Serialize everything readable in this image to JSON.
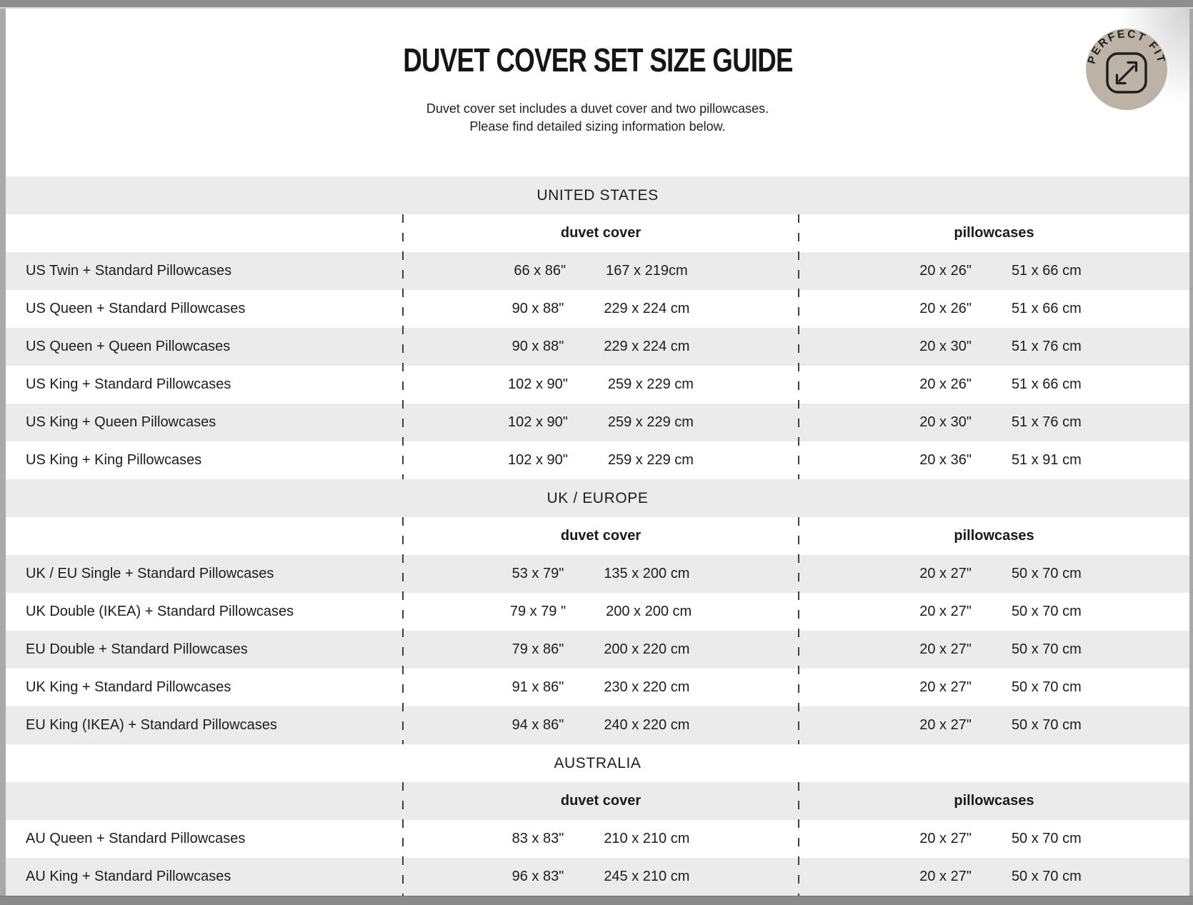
{
  "page": {
    "title": "DUVET COVER SET SIZE GUIDE",
    "subtitle_line1": "Duvet cover set includes a duvet cover and two pillowcases.",
    "subtitle_line2": "Please find detailed sizing information below.",
    "badge": {
      "label": "PERFECT FIT"
    },
    "colors": {
      "stripe_gray": "#ebebeb",
      "badge_background": "#bcb3a6",
      "text": "#1c1c1c",
      "frame_gray": "#8e8e8e"
    }
  },
  "table": {
    "column_headers": {
      "duvet": "duvet cover",
      "pillow": "pillowcases"
    },
    "sections": [
      {
        "name": "UNITED STATES",
        "rows": [
          {
            "label": "US Twin + Standard Pillowcases",
            "duvet_in": "66 x 86\"",
            "duvet_cm": "167 x 219cm",
            "pillow_in": "20 x 26\"",
            "pillow_cm": "51 x 66 cm"
          },
          {
            "label": "US Queen + Standard Pillowcases",
            "duvet_in": "90 x 88\"",
            "duvet_cm": "229 x 224 cm",
            "pillow_in": "20 x 26\"",
            "pillow_cm": "51 x 66 cm"
          },
          {
            "label": "US Queen + Queen Pillowcases",
            "duvet_in": "90 x 88\"",
            "duvet_cm": "229 x 224 cm",
            "pillow_in": "20 x 30\"",
            "pillow_cm": "51 x 76 cm"
          },
          {
            "label": "US King + Standard Pillowcases",
            "duvet_in": "102 x 90\"",
            "duvet_cm": "259 x 229 cm",
            "pillow_in": "20 x 26\"",
            "pillow_cm": "51 x 66 cm"
          },
          {
            "label": "US King + Queen Pillowcases",
            "duvet_in": "102 x 90\"",
            "duvet_cm": "259 x 229 cm",
            "pillow_in": "20 x 30\"",
            "pillow_cm": "51 x 76 cm"
          },
          {
            "label": "US King + King Pillowcases",
            "duvet_in": "102 x 90\"",
            "duvet_cm": "259 x 229 cm",
            "pillow_in": "20 x 36\"",
            "pillow_cm": "51 x 91 cm"
          }
        ]
      },
      {
        "name": "UK / EUROPE",
        "rows": [
          {
            "label": "UK / EU Single + Standard Pillowcases",
            "duvet_in": "53 x 79\"",
            "duvet_cm": "135 x 200 cm",
            "pillow_in": "20 x 27\"",
            "pillow_cm": "50 x 70 cm"
          },
          {
            "label": "UK Double (IKEA) + Standard Pillowcases",
            "duvet_in": "79 x 79 \"",
            "duvet_cm": "200 x 200 cm",
            "pillow_in": "20 x 27\"",
            "pillow_cm": "50 x 70 cm"
          },
          {
            "label": "EU Double + Standard Pillowcases",
            "duvet_in": "79 x 86\"",
            "duvet_cm": "200 x 220 cm",
            "pillow_in": "20 x 27\"",
            "pillow_cm": "50 x 70 cm"
          },
          {
            "label": "UK King + Standard Pillowcases",
            "duvet_in": "91 x 86\"",
            "duvet_cm": "230 x 220 cm",
            "pillow_in": "20 x 27\"",
            "pillow_cm": "50 x 70 cm"
          },
          {
            "label": "EU King (IKEA) + Standard Pillowcases",
            "duvet_in": "94 x 86\"",
            "duvet_cm": "240 x 220 cm",
            "pillow_in": "20 x 27\"",
            "pillow_cm": "50 x 70 cm"
          }
        ]
      },
      {
        "name": "AUSTRALIA",
        "rows": [
          {
            "label": "AU Queen + Standard Pillowcases",
            "duvet_in": "83 x 83\"",
            "duvet_cm": "210 x 210 cm",
            "pillow_in": "20 x 27\"",
            "pillow_cm": "50 x 70 cm"
          },
          {
            "label": "AU King + Standard Pillowcases",
            "duvet_in": "96 x 83\"",
            "duvet_cm": "245 x 210 cm",
            "pillow_in": "20 x 27\"",
            "pillow_cm": "50 x 70 cm"
          }
        ]
      }
    ]
  }
}
